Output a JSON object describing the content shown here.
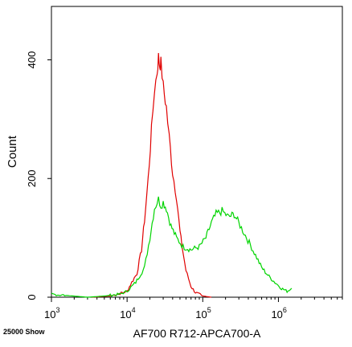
{
  "chart_data": {
    "type": "line",
    "title": "",
    "xlabel": "AF700 R712-APCA700-A",
    "ylabel": "Count",
    "x_scale": "log",
    "xlim": [
      1000,
      7000000
    ],
    "ylim": [
      0,
      490
    ],
    "x_ticks": [
      {
        "value": 1000,
        "base": "10",
        "exp": "3"
      },
      {
        "value": 10000,
        "base": "10",
        "exp": "4"
      },
      {
        "value": 100000,
        "base": "10",
        "exp": "5"
      },
      {
        "value": 1000000,
        "base": "10",
        "exp": "6"
      }
    ],
    "y_ticks": [
      0,
      200,
      400
    ],
    "grid": false,
    "legend": "none",
    "footer_note": "25000 Show",
    "series": [
      {
        "color": "#e00000",
        "points": [
          [
            3400,
            0
          ],
          [
            6000,
            2
          ],
          [
            9000,
            8
          ],
          [
            10000,
            10
          ],
          [
            11500,
            25
          ],
          [
            13500,
            40
          ],
          [
            15500,
            80
          ],
          [
            17000,
            130
          ],
          [
            19000,
            200
          ],
          [
            21000,
            280
          ],
          [
            23000,
            350
          ],
          [
            25000,
            380
          ],
          [
            26000,
            405
          ],
          [
            27000,
            390
          ],
          [
            28000,
            395
          ],
          [
            30000,
            355
          ],
          [
            33000,
            320
          ],
          [
            36000,
            270
          ],
          [
            40000,
            210
          ],
          [
            45000,
            170
          ],
          [
            50000,
            110
          ],
          [
            55000,
            75
          ],
          [
            60000,
            45
          ],
          [
            70000,
            18
          ],
          [
            80000,
            8
          ],
          [
            100000,
            2
          ],
          [
            130000,
            0
          ]
        ]
      },
      {
        "color": "#00d400",
        "points": [
          [
            1000,
            5
          ],
          [
            3000,
            0
          ],
          [
            5000,
            2
          ],
          [
            8000,
            5
          ],
          [
            10000,
            10
          ],
          [
            13000,
            25
          ],
          [
            17000,
            50
          ],
          [
            20000,
            100
          ],
          [
            23000,
            150
          ],
          [
            26000,
            165
          ],
          [
            28000,
            155
          ],
          [
            30000,
            160
          ],
          [
            33000,
            150
          ],
          [
            38000,
            120
          ],
          [
            45000,
            100
          ],
          [
            55000,
            85
          ],
          [
            70000,
            80
          ],
          [
            90000,
            85
          ],
          [
            110000,
            100
          ],
          [
            130000,
            125
          ],
          [
            150000,
            140
          ],
          [
            180000,
            145
          ],
          [
            220000,
            135
          ],
          [
            260000,
            140
          ],
          [
            300000,
            125
          ],
          [
            380000,
            100
          ],
          [
            480000,
            75
          ],
          [
            600000,
            50
          ],
          [
            750000,
            35
          ],
          [
            900000,
            25
          ],
          [
            1100000,
            15
          ],
          [
            1300000,
            10
          ],
          [
            1500000,
            15
          ]
        ]
      }
    ]
  }
}
